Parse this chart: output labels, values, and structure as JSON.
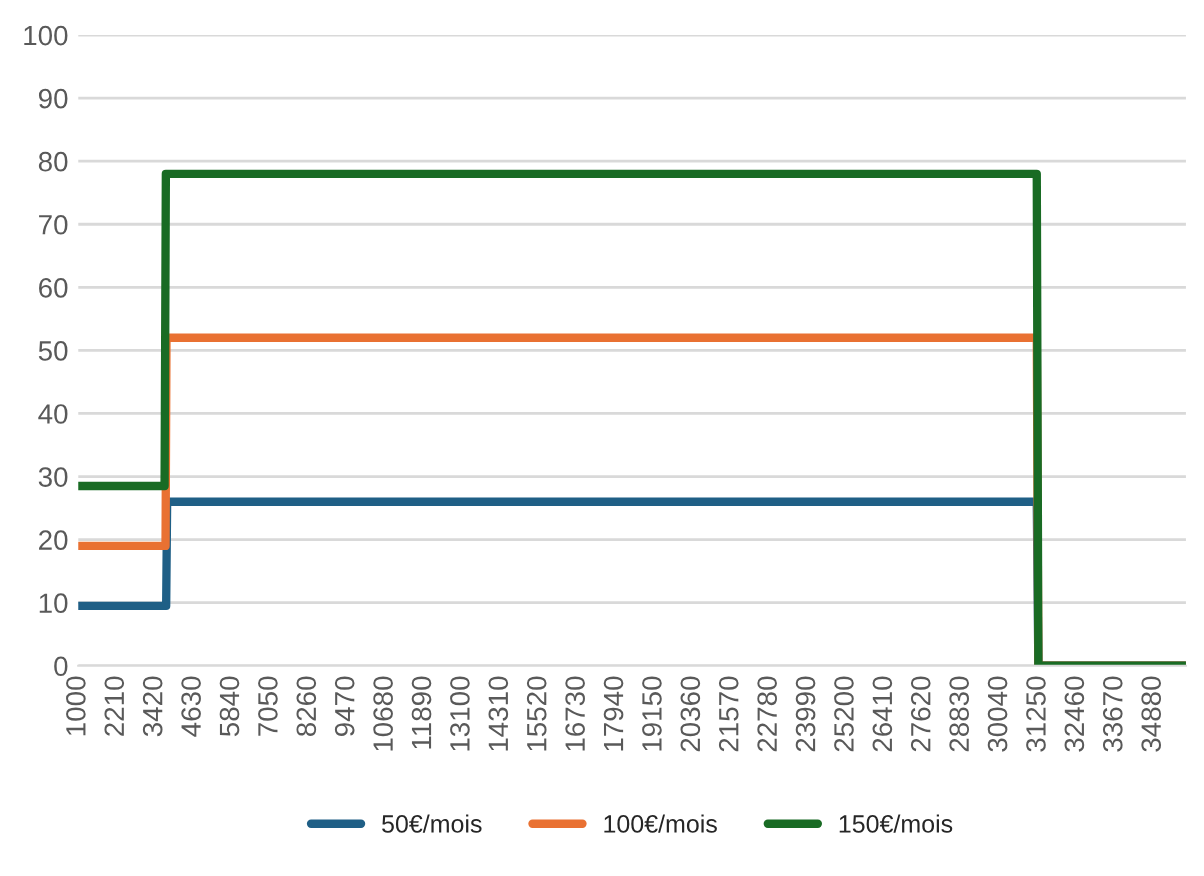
{
  "chart_data": {
    "type": "line",
    "xlim": [
      1000,
      35900
    ],
    "xticks": [
      1000,
      2210,
      3420,
      4630,
      5840,
      7050,
      8260,
      9470,
      10680,
      11890,
      13100,
      14310,
      15520,
      16730,
      17940,
      19150,
      20360,
      21570,
      22780,
      23990,
      25200,
      26410,
      27620,
      28830,
      30040,
      31250,
      32460,
      33670,
      34880
    ],
    "ylim": [
      0,
      100
    ],
    "yticks": [
      0,
      10,
      20,
      30,
      40,
      50,
      60,
      70,
      80,
      90,
      100
    ],
    "grid": "y",
    "legend": "bottom",
    "marker": "none",
    "line_style": "solid",
    "series": [
      {
        "name": "50€/mois",
        "color": "#1f5f86",
        "x": [
          1000,
          3770,
          3800,
          31200,
          31250,
          35900
        ],
        "values": [
          9.5,
          9.5,
          26,
          26,
          0,
          0
        ]
      },
      {
        "name": "100€/mois",
        "color": "#e97132",
        "x": [
          1000,
          3750,
          3780,
          31200,
          31250,
          35900
        ],
        "values": [
          19,
          19,
          52,
          52,
          0,
          0
        ]
      },
      {
        "name": "150€/mois",
        "color": "#196b24",
        "x": [
          1000,
          3720,
          3760,
          31200,
          31250,
          35900
        ],
        "values": [
          28.5,
          28.5,
          78,
          78,
          0,
          0
        ]
      }
    ]
  }
}
